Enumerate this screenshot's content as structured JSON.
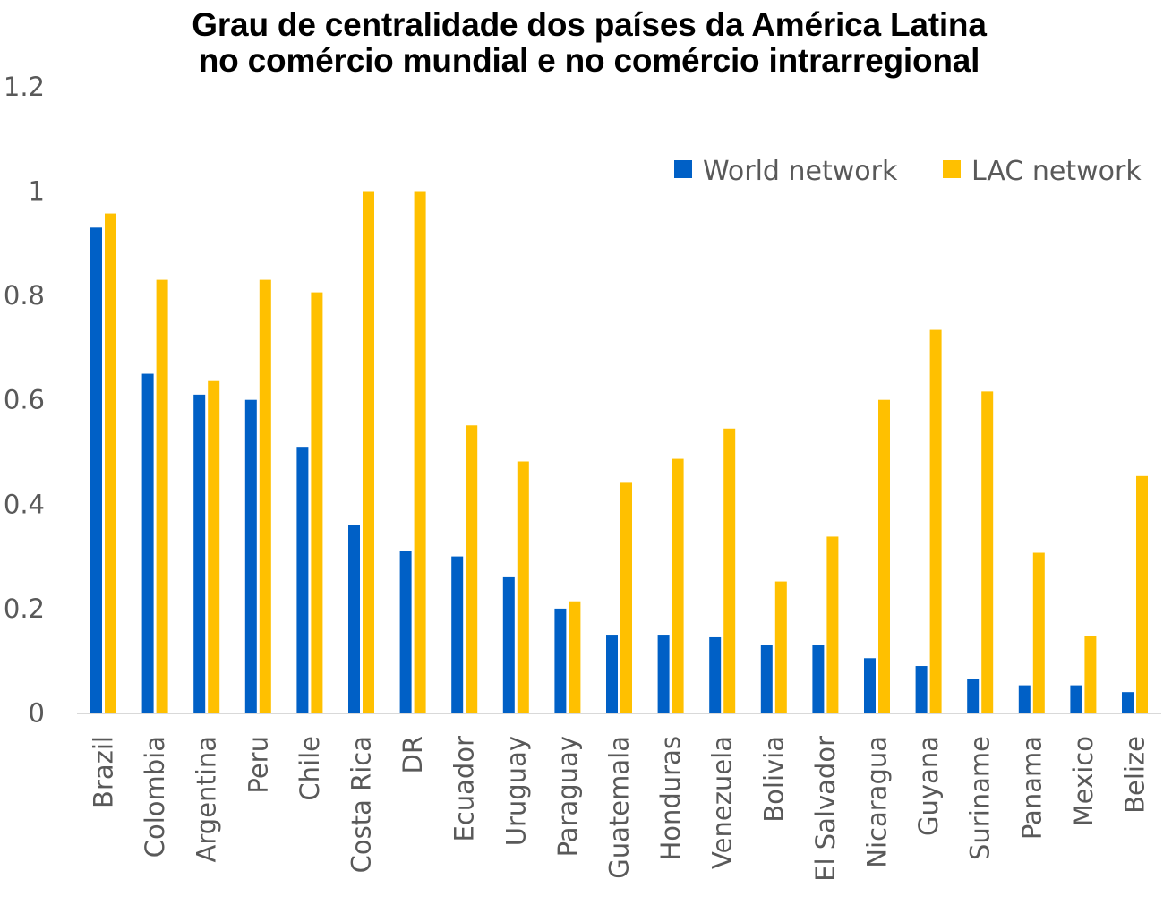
{
  "title": {
    "line1": "Grau de centralidade dos países da América Latina",
    "line2": "no comércio mundial e no comércio intrarregional"
  },
  "chart_data": {
    "type": "bar",
    "title": "Grau de centralidade dos países da América Latina no comércio mundial e no comércio intrarregional",
    "xlabel": "",
    "ylabel": "",
    "ylim": [
      0,
      1.2
    ],
    "yticks": [
      0,
      0.2,
      0.4,
      0.6,
      0.8,
      1,
      1.2
    ],
    "ytick_labels": [
      "0",
      "0.2",
      "0.4",
      "0.6",
      "0.8",
      "1",
      "1.2"
    ],
    "grid": false,
    "legend_position": "top-right",
    "categories": [
      "Brazil",
      "Colombia",
      "Argentina",
      "Peru",
      "Chile",
      "Costa Rica",
      "DR",
      "Ecuador",
      "Uruguay",
      "Paraguay",
      "Guatemala",
      "Honduras",
      "Venezuela",
      "Bolivia",
      "El Salvador",
      "Nicaragua",
      "Guyana",
      "Suriname",
      "Panama",
      "Mexico",
      "Belize"
    ],
    "series": [
      {
        "name": "World network",
        "color": "#0060C6",
        "values": [
          0.93,
          0.65,
          0.61,
          0.6,
          0.51,
          0.36,
          0.31,
          0.3,
          0.26,
          0.2,
          0.15,
          0.15,
          0.145,
          0.13,
          0.13,
          0.105,
          0.09,
          0.065,
          0.053,
          0.053,
          0.04
        ]
      },
      {
        "name": "LAC network",
        "color": "#FFC000",
        "values": [
          0.957,
          0.83,
          0.636,
          0.83,
          0.806,
          1.0,
          1.0,
          0.551,
          0.482,
          0.214,
          0.441,
          0.487,
          0.545,
          0.252,
          0.338,
          0.6,
          0.734,
          0.616,
          0.307,
          0.148,
          0.454
        ]
      }
    ],
    "axis_color": "#D9D9D9",
    "label_color": "#595959"
  }
}
